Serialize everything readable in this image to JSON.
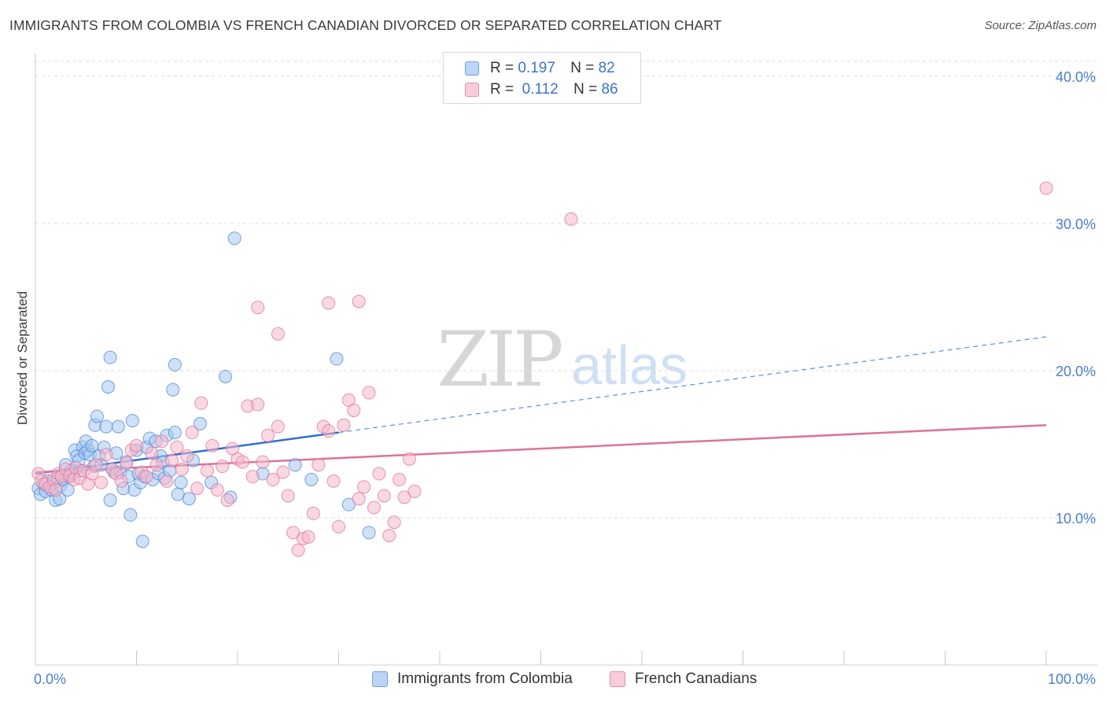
{
  "header": {
    "title": "IMMIGRANTS FROM COLOMBIA VS FRENCH CANADIAN DIVORCED OR SEPARATED CORRELATION CHART",
    "source": "Source: ZipAtlas.com"
  },
  "watermark": {
    "zip": "ZIP",
    "atlas": "atlas"
  },
  "legend_top": [
    {
      "r_label": "R =",
      "r_value": "0.197",
      "n_label": "N =",
      "n_value": "82",
      "color": "#a8c8f0"
    },
    {
      "r_label": "R =",
      "r_value": "0.112",
      "n_label": "N =",
      "n_value": "86",
      "color": "#f5b8cb"
    }
  ],
  "legend_bottom": [
    {
      "label": "Immigrants from Colombia",
      "color": "#a8c8f0"
    },
    {
      "label": "French Canadians",
      "color": "#f5b8cb"
    }
  ],
  "chart_data": {
    "type": "scatter",
    "title": "IMMIGRANTS FROM COLOMBIA VS FRENCH CANADIAN DIVORCED OR SEPARATED CORRELATION CHART",
    "xlabel": "",
    "ylabel": "Divorced or Separated",
    "xlim": [
      0,
      100
    ],
    "ylim": [
      0,
      40
    ],
    "x_tick_labels": [
      "0.0%",
      "100.0%"
    ],
    "y_ticks": [
      10,
      20,
      30,
      40
    ],
    "y_tick_labels": [
      "10.0%",
      "20.0%",
      "30.0%",
      "40.0%"
    ],
    "grid": true,
    "legend_placement": "top-center",
    "series": [
      {
        "name": "Immigrants from Colombia",
        "color": "#4a86d8",
        "fill": "#a8c8f0",
        "r": 0.197,
        "n": 82,
        "trend": {
          "solid": [
            [
              0,
              13.0
            ],
            [
              30,
              15.8
            ]
          ],
          "dashed": [
            [
              30,
              15.8
            ],
            [
              100,
              22.3
            ]
          ]
        },
        "points": [
          [
            0.3,
            12.0
          ],
          [
            0.5,
            11.6
          ],
          [
            0.8,
            12.3
          ],
          [
            1.0,
            11.8
          ],
          [
            1.2,
            12.5
          ],
          [
            1.4,
            12.1
          ],
          [
            1.6,
            11.9
          ],
          [
            1.8,
            12.4
          ],
          [
            2.0,
            11.2
          ],
          [
            2.2,
            12.7
          ],
          [
            2.4,
            11.3
          ],
          [
            2.5,
            12.2
          ],
          [
            2.6,
            12.9
          ],
          [
            2.8,
            12.6
          ],
          [
            3.0,
            13.6
          ],
          [
            3.2,
            11.9
          ],
          [
            3.4,
            12.8
          ],
          [
            3.5,
            13.2
          ],
          [
            3.7,
            13.0
          ],
          [
            3.9,
            14.6
          ],
          [
            4.1,
            14.2
          ],
          [
            4.3,
            13.9
          ],
          [
            4.5,
            13.2
          ],
          [
            4.7,
            14.8
          ],
          [
            4.9,
            14.4
          ],
          [
            5.0,
            15.2
          ],
          [
            5.2,
            14.6
          ],
          [
            5.4,
            14.3
          ],
          [
            5.6,
            14.9
          ],
          [
            5.8,
            13.5
          ],
          [
            5.9,
            16.3
          ],
          [
            6.1,
            16.9
          ],
          [
            6.3,
            14.2
          ],
          [
            6.5,
            13.6
          ],
          [
            6.8,
            14.8
          ],
          [
            7.0,
            16.2
          ],
          [
            7.2,
            18.9
          ],
          [
            7.4,
            11.2
          ],
          [
            7.6,
            13.3
          ],
          [
            7.8,
            13.1
          ],
          [
            8.0,
            14.4
          ],
          [
            8.2,
            16.2
          ],
          [
            8.4,
            13.1
          ],
          [
            8.7,
            12.0
          ],
          [
            9.0,
            13.8
          ],
          [
            9.2,
            12.8
          ],
          [
            9.4,
            10.2
          ],
          [
            9.6,
            16.6
          ],
          [
            9.8,
            11.9
          ],
          [
            10.0,
            14.6
          ],
          [
            10.2,
            13.0
          ],
          [
            10.4,
            12.4
          ],
          [
            10.6,
            8.4
          ],
          [
            10.8,
            12.8
          ],
          [
            11.0,
            14.8
          ],
          [
            11.3,
            15.4
          ],
          [
            11.6,
            12.6
          ],
          [
            11.9,
            15.2
          ],
          [
            12.2,
            13.0
          ],
          [
            12.4,
            14.2
          ],
          [
            12.6,
            13.8
          ],
          [
            12.8,
            12.7
          ],
          [
            13.0,
            15.6
          ],
          [
            13.3,
            13.2
          ],
          [
            13.6,
            18.7
          ],
          [
            13.8,
            15.8
          ],
          [
            14.1,
            11.6
          ],
          [
            14.4,
            12.4
          ],
          [
            15.2,
            11.3
          ],
          [
            15.6,
            13.9
          ],
          [
            17.4,
            12.4
          ],
          [
            13.8,
            20.4
          ],
          [
            7.4,
            20.9
          ],
          [
            16.3,
            16.4
          ],
          [
            19.3,
            11.4
          ],
          [
            18.8,
            19.6
          ],
          [
            22.5,
            13.0
          ],
          [
            25.7,
            13.6
          ],
          [
            27.3,
            12.6
          ],
          [
            29.8,
            20.8
          ],
          [
            31.0,
            10.9
          ],
          [
            33.0,
            9.0
          ],
          [
            19.7,
            29.0
          ]
        ]
      },
      {
        "name": "French Canadians",
        "color": "#e0709a",
        "fill": "#f5b8cb",
        "r": 0.112,
        "n": 86,
        "trend": {
          "solid": [
            [
              0,
              13.1
            ],
            [
              100,
              16.3
            ]
          ]
        },
        "points": [
          [
            0.3,
            13.0
          ],
          [
            0.6,
            12.5
          ],
          [
            1.0,
            12.3
          ],
          [
            1.4,
            12.1
          ],
          [
            1.8,
            12.6
          ],
          [
            2.0,
            11.9
          ],
          [
            2.3,
            13.0
          ],
          [
            2.6,
            12.8
          ],
          [
            3.0,
            13.3
          ],
          [
            3.4,
            12.9
          ],
          [
            3.8,
            12.6
          ],
          [
            4.0,
            13.4
          ],
          [
            4.4,
            12.7
          ],
          [
            4.8,
            13.2
          ],
          [
            5.2,
            12.3
          ],
          [
            5.6,
            13.0
          ],
          [
            6.0,
            13.6
          ],
          [
            6.5,
            12.4
          ],
          [
            7.0,
            14.3
          ],
          [
            7.6,
            13.3
          ],
          [
            8.0,
            13.0
          ],
          [
            8.5,
            12.5
          ],
          [
            9.0,
            13.7
          ],
          [
            9.5,
            14.6
          ],
          [
            10.0,
            14.9
          ],
          [
            10.5,
            13.1
          ],
          [
            11.0,
            12.8
          ],
          [
            11.5,
            14.4
          ],
          [
            12.0,
            13.6
          ],
          [
            12.5,
            15.2
          ],
          [
            13.0,
            12.5
          ],
          [
            13.5,
            13.9
          ],
          [
            14.0,
            14.8
          ],
          [
            14.5,
            13.3
          ],
          [
            15.0,
            14.2
          ],
          [
            15.5,
            15.8
          ],
          [
            16.0,
            12.0
          ],
          [
            16.4,
            17.8
          ],
          [
            17.0,
            13.2
          ],
          [
            17.5,
            14.9
          ],
          [
            18.0,
            11.9
          ],
          [
            18.5,
            13.5
          ],
          [
            19.0,
            11.2
          ],
          [
            19.5,
            14.7
          ],
          [
            20.0,
            14.0
          ],
          [
            20.5,
            13.8
          ],
          [
            21.0,
            17.6
          ],
          [
            21.5,
            12.8
          ],
          [
            22.0,
            17.7
          ],
          [
            22.5,
            13.8
          ],
          [
            23.0,
            15.6
          ],
          [
            23.5,
            12.6
          ],
          [
            24.0,
            16.2
          ],
          [
            24.5,
            13.1
          ],
          [
            25.0,
            11.5
          ],
          [
            25.5,
            9.0
          ],
          [
            26.0,
            7.8
          ],
          [
            26.5,
            8.6
          ],
          [
            27.0,
            8.7
          ],
          [
            27.5,
            10.3
          ],
          [
            28.0,
            13.6
          ],
          [
            28.5,
            16.2
          ],
          [
            29.0,
            15.9
          ],
          [
            29.5,
            12.5
          ],
          [
            30.0,
            9.4
          ],
          [
            30.5,
            16.3
          ],
          [
            31.0,
            18.0
          ],
          [
            31.5,
            17.3
          ],
          [
            32.0,
            11.3
          ],
          [
            32.5,
            12.1
          ],
          [
            33.0,
            18.5
          ],
          [
            33.5,
            10.7
          ],
          [
            34.0,
            13.0
          ],
          [
            34.5,
            11.5
          ],
          [
            35.0,
            8.8
          ],
          [
            35.5,
            9.7
          ],
          [
            36.0,
            12.6
          ],
          [
            36.5,
            11.4
          ],
          [
            37.0,
            14.0
          ],
          [
            37.5,
            11.8
          ],
          [
            24.0,
            22.5
          ],
          [
            22.0,
            24.3
          ],
          [
            29.0,
            24.6
          ],
          [
            32.0,
            24.7
          ],
          [
            53.0,
            30.3
          ],
          [
            100.0,
            32.4
          ]
        ]
      }
    ]
  }
}
